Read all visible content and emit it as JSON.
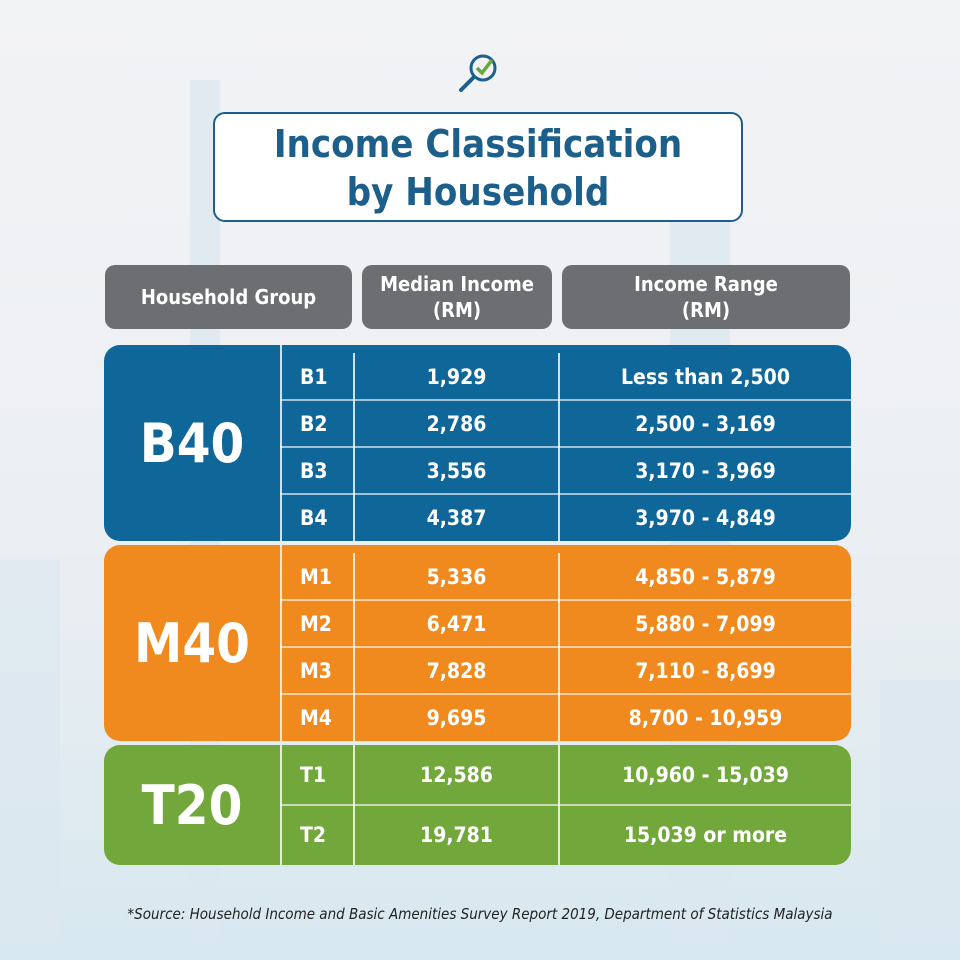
{
  "title": {
    "line1": "Income Classification",
    "line2": "by Household"
  },
  "headers": {
    "group": "Household Group",
    "median": "Median Income\n(RM)",
    "range": "Income Range\n(RM)"
  },
  "groups": [
    {
      "label": "B40",
      "color": "#0f6699",
      "rows": [
        {
          "code": "B1",
          "median": "1,929",
          "range": "Less than  2,500"
        },
        {
          "code": "B2",
          "median": "2,786",
          "range": "2,500 - 3,169"
        },
        {
          "code": "B3",
          "median": "3,556",
          "range": "3,170 - 3,969"
        },
        {
          "code": "B4",
          "median": "4,387",
          "range": "3,970 - 4,849"
        }
      ]
    },
    {
      "label": "M40",
      "color": "#f08a1f",
      "rows": [
        {
          "code": "M1",
          "median": "5,336",
          "range": "4,850 - 5,879"
        },
        {
          "code": "M2",
          "median": "6,471",
          "range": "5,880 - 7,099"
        },
        {
          "code": "M3",
          "median": "7,828",
          "range": "7,110 - 8,699"
        },
        {
          "code": "M4",
          "median": "9,695",
          "range": "8,700 - 10,959"
        }
      ]
    },
    {
      "label": "T20",
      "color": "#72a83b",
      "rows": [
        {
          "code": "T1",
          "median": "12,586",
          "range": "10,960 - 15,039"
        },
        {
          "code": "T2",
          "median": "19,781",
          "range": "15,039 or more"
        }
      ]
    }
  ],
  "source": "*Source:  Household Income and Basic Amenities Survey Report 2019, Department of Statistics Malaysia",
  "icon": "magnifier-check-icon"
}
